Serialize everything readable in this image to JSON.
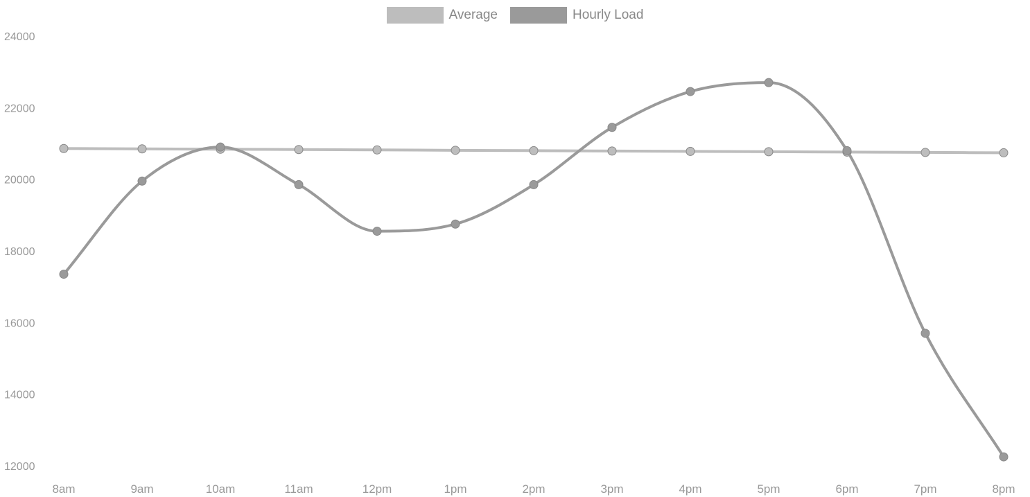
{
  "chart_data": {
    "type": "line",
    "categories": [
      "8am",
      "9am",
      "10am",
      "11am",
      "12pm",
      "1pm",
      "2pm",
      "3pm",
      "4pm",
      "5pm",
      "6pm",
      "7pm",
      "8pm"
    ],
    "y_tick_labels": [
      "12000",
      "14000",
      "16000",
      "18000",
      "20000",
      "22000",
      "24000"
    ],
    "ylim": [
      12000,
      24000
    ],
    "grid": false,
    "legend_position": "top-center",
    "series": [
      {
        "name": "Average",
        "color": "#bdbdbd",
        "values": [
          20860,
          20850,
          20840,
          20830,
          20820,
          20810,
          20800,
          20790,
          20780,
          20770,
          20760,
          20750,
          20740
        ]
      },
      {
        "name": "Hourly Load",
        "color": "#9a9a9a",
        "values": [
          17350,
          19950,
          20900,
          19850,
          18550,
          18750,
          19850,
          21450,
          22450,
          22700,
          20800,
          15700,
          12250
        ]
      }
    ]
  }
}
